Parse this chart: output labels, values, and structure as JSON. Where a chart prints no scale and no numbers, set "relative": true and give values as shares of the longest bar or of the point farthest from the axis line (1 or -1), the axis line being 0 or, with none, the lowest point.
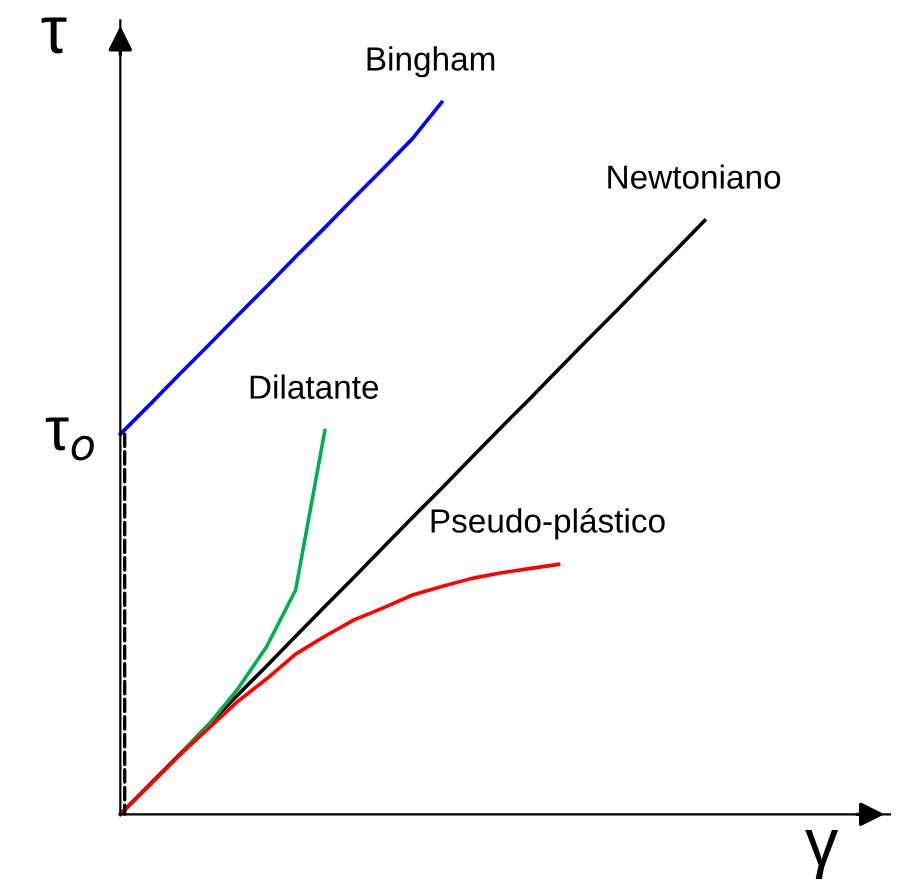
{
  "chart_data": {
    "type": "line",
    "relative": true,
    "xlabel": "γ",
    "ylabel": "τ",
    "annotations": [
      "τ$_{o}$"
    ],
    "categories": [
      null,
      null,
      null,
      null,
      null,
      null,
      null,
      null,
      null,
      null,
      null,
      null,
      null,
      null,
      null,
      null,
      null,
      null,
      null,
      null,
      null
    ],
    "series": [
      {
        "name": "Bingham",
        "color": "#0000ff",
        "values": [
          0.534,
          0.575,
          0.617,
          0.658,
          0.7,
          0.741,
          0.783,
          0.824,
          0.866,
          0.907,
          0.949,
          1.0,
          null,
          null,
          null,
          null,
          null,
          null,
          null,
          null,
          null
        ]
      },
      {
        "name": "Newtoniano",
        "color": "#000000",
        "values": [
          0,
          0.042,
          0.083,
          0.125,
          0.167,
          0.208,
          0.25,
          0.292,
          0.333,
          0.375,
          0.417,
          0.458,
          0.5,
          0.542,
          0.583,
          0.625,
          0.667,
          0.708,
          0.75,
          0.792,
          0.834
        ]
      },
      {
        "name": "Dilatante",
        "color": "#00b050",
        "values": [
          0,
          0.041,
          0.082,
          0.125,
          0.175,
          0.235,
          0.315,
          0.539,
          null,
          null,
          null,
          null,
          null,
          null,
          null,
          null,
          null,
          null,
          null,
          null,
          null
        ]
      },
      {
        "name": "Pseudo-plástico",
        "color": "#ff0000",
        "values": [
          0,
          0.041,
          0.082,
          0.12,
          0.158,
          0.19,
          0.225,
          0.25,
          0.273,
          0.29,
          0.308,
          0.32,
          0.331,
          0.339,
          0.345,
          0.351,
          null,
          null,
          null,
          null,
          null
        ]
      }
    ]
  }
}
